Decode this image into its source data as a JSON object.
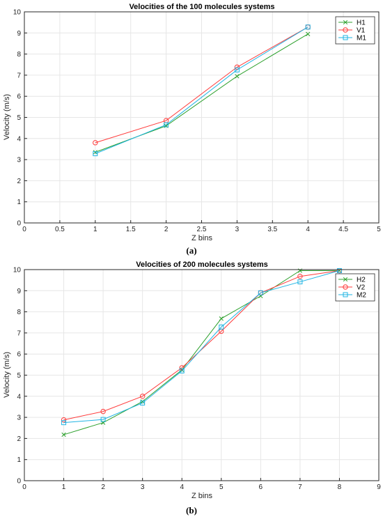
{
  "chart_data": [
    {
      "type": "line",
      "title": "Velocities of the 100 molecules systems",
      "xlabel": "Z bins",
      "ylabel": "Velocity (m/s)",
      "caption": "(a)",
      "xlim": [
        0,
        5
      ],
      "ylim": [
        0,
        10
      ],
      "xticks": [
        "0",
        "0.5",
        "1",
        "1.5",
        "2",
        "2.5",
        "3",
        "3.5",
        "4",
        "4.5",
        "5"
      ],
      "yticks": [
        "0",
        "1",
        "2",
        "3",
        "4",
        "5",
        "6",
        "7",
        "8",
        "9",
        "10"
      ],
      "grid": true,
      "legend_position": "top-right",
      "x": [
        1,
        2,
        3,
        4
      ],
      "series": [
        {
          "name": "H1",
          "color": "#2ca02c",
          "marker": "x",
          "values": [
            3.35,
            4.6,
            6.95,
            8.95
          ]
        },
        {
          "name": "V1",
          "color": "#ff3b3b",
          "marker": "o",
          "values": [
            3.8,
            4.85,
            7.38,
            9.28
          ]
        },
        {
          "name": "M1",
          "color": "#1fb4e3",
          "marker": "s",
          "values": [
            3.28,
            4.65,
            7.25,
            9.28
          ]
        }
      ]
    },
    {
      "type": "line",
      "title": "Velocities of 200 molecules systems",
      "xlabel": "Z bins",
      "ylabel": "Velocity (m/s)",
      "caption": "(b)",
      "xlim": [
        0,
        9
      ],
      "ylim": [
        0,
        10
      ],
      "xticks": [
        "0",
        "1",
        "2",
        "3",
        "4",
        "5",
        "6",
        "7",
        "8",
        "9"
      ],
      "yticks": [
        "0",
        "1",
        "2",
        "3",
        "4",
        "5",
        "6",
        "7",
        "8",
        "9",
        "10"
      ],
      "grid": true,
      "legend_position": "top-right",
      "x": [
        1,
        2,
        3,
        4,
        5,
        6,
        7,
        8
      ],
      "series": [
        {
          "name": "H2",
          "color": "#2ca02c",
          "marker": "x",
          "values": [
            2.18,
            2.75,
            3.75,
            5.25,
            7.68,
            8.75,
            9.95,
            9.95
          ]
        },
        {
          "name": "V2",
          "color": "#ff3b3b",
          "marker": "o",
          "values": [
            2.88,
            3.28,
            4.0,
            5.35,
            7.08,
            8.9,
            9.68,
            9.95
          ]
        },
        {
          "name": "M2",
          "color": "#1fb4e3",
          "marker": "s",
          "values": [
            2.75,
            2.9,
            3.68,
            5.2,
            7.28,
            8.9,
            9.42,
            9.95
          ]
        }
      ]
    }
  ]
}
